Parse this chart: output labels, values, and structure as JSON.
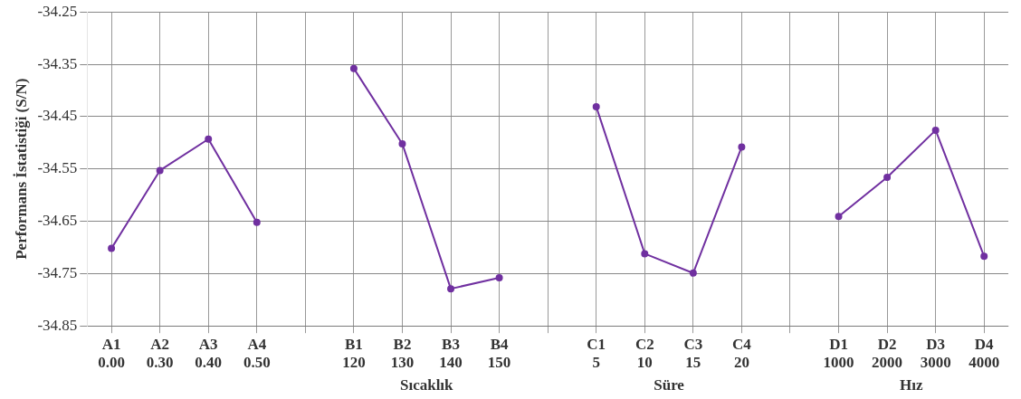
{
  "chart_data": {
    "type": "line",
    "ylabel": "Performans İstatistiği (S/N)",
    "categories": [
      "A1\n0.00",
      "A2\n0.30",
      "A3\n0.40",
      "A4\n0.50",
      null,
      "B1\n120",
      "B2\n130",
      "B3\n140",
      "B4\n150",
      null,
      "C1\n5",
      "C2\n10",
      "C3\n15",
      "C4\n20",
      null,
      "D1\n1000",
      "D2\n2000",
      "D3\n3000",
      "D4\n4000"
    ],
    "series": [
      {
        "color": "#7030a0",
        "values": [
          -34.702,
          -34.553,
          -34.493,
          -34.652,
          null,
          -34.358,
          -34.502,
          -34.779,
          -34.758,
          null,
          -34.431,
          -34.712,
          -34.749,
          -34.508,
          null,
          -34.641,
          -34.566,
          -34.476,
          -34.717
        ]
      }
    ],
    "ylim": [
      -34.85,
      -34.25
    ],
    "yticks": [
      -34.85,
      -34.75,
      -34.65,
      -34.55,
      -34.45,
      -34.35,
      -34.25
    ],
    "annotations": [
      "Sıcaklık",
      "Süre",
      "Hız"
    ],
    "grid": true,
    "legend": false,
    "marker": "circle",
    "line_style": "solid"
  }
}
